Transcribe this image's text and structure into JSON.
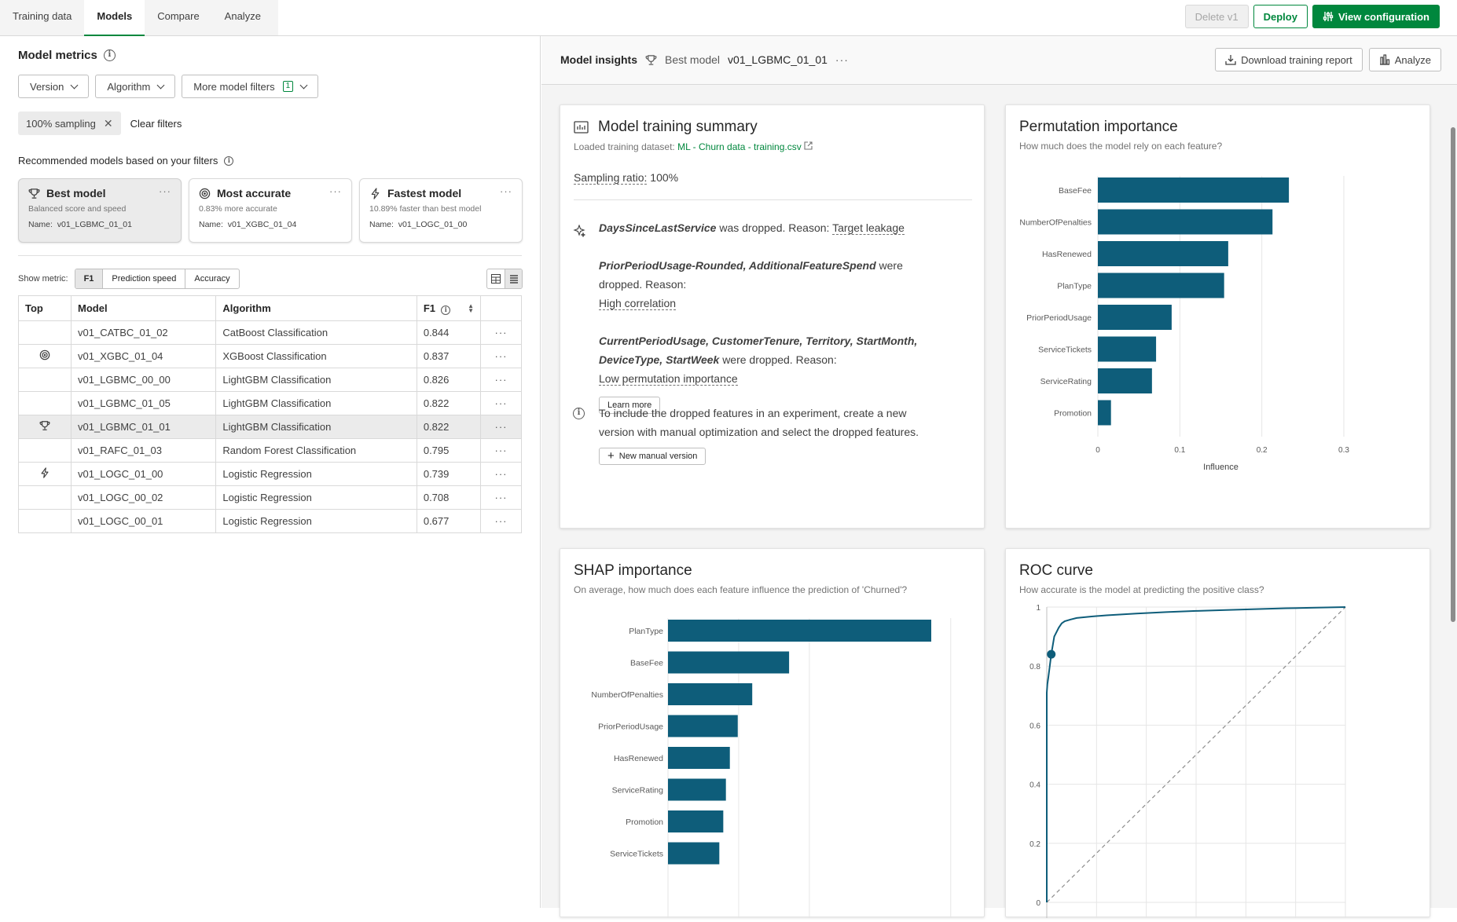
{
  "nav": {
    "tabs": [
      "Training data",
      "Models",
      "Compare",
      "Analyze"
    ],
    "active_tab": "Models",
    "delete_label": "Delete v1",
    "deploy_label": "Deploy",
    "view_config_label": "View configuration"
  },
  "left": {
    "title": "Model metrics",
    "filters": {
      "version": "Version",
      "algorithm": "Algorithm",
      "more": "More model filters",
      "more_count": "1"
    },
    "chip": "100% sampling",
    "clear": "Clear filters",
    "recommended_title": "Recommended models based on your filters",
    "cards": [
      {
        "title": "Best model",
        "sub": "Balanced score and speed",
        "name_label": "Name:",
        "name": "v01_LGBMC_01_01",
        "icon": "trophy-icon"
      },
      {
        "title": "Most accurate",
        "sub": "0.83% more accurate",
        "name_label": "Name:",
        "name": "v01_XGBC_01_04",
        "icon": "target-icon"
      },
      {
        "title": "Fastest model",
        "sub": "10.89% faster than best model",
        "name_label": "Name:",
        "name": "v01_LOGC_01_00",
        "icon": "lightning-icon"
      }
    ],
    "show_metric_label": "Show metric:",
    "metrics": [
      "F1",
      "Prediction speed",
      "Accuracy"
    ],
    "active_metric": "F1",
    "table": {
      "headers": [
        "Top",
        "Model",
        "Algorithm",
        "F1"
      ],
      "rows": [
        {
          "top": "",
          "model": "v01_CATBC_01_02",
          "algorithm": "CatBoost Classification",
          "f1": "0.844"
        },
        {
          "top": "target-icon",
          "model": "v01_XGBC_01_04",
          "algorithm": "XGBoost Classification",
          "f1": "0.837"
        },
        {
          "top": "",
          "model": "v01_LGBMC_00_00",
          "algorithm": "LightGBM Classification",
          "f1": "0.826"
        },
        {
          "top": "",
          "model": "v01_LGBMC_01_05",
          "algorithm": "LightGBM Classification",
          "f1": "0.822"
        },
        {
          "top": "trophy-icon",
          "model": "v01_LGBMC_01_01",
          "algorithm": "LightGBM Classification",
          "f1": "0.822",
          "selected": true
        },
        {
          "top": "",
          "model": "v01_RAFC_01_03",
          "algorithm": "Random Forest Classification",
          "f1": "0.795"
        },
        {
          "top": "lightning-icon",
          "model": "v01_LOGC_01_00",
          "algorithm": "Logistic Regression",
          "f1": "0.739"
        },
        {
          "top": "",
          "model": "v01_LOGC_00_02",
          "algorithm": "Logistic Regression",
          "f1": "0.708"
        },
        {
          "top": "",
          "model": "v01_LOGC_00_01",
          "algorithm": "Logistic Regression",
          "f1": "0.677"
        }
      ]
    }
  },
  "insights": {
    "title": "Model insights",
    "best_label": "Best model",
    "version": "v01_LGBMC_01_01",
    "download_label": "Download training report",
    "analyze_label": "Analyze"
  },
  "summary": {
    "title": "Model training summary",
    "dataset_label": "Loaded training dataset:",
    "dataset_name": "ML - Churn data - training.csv",
    "sampling_label": "Sampling ratio:",
    "sampling_value": "100%",
    "drop1_feature": "DaysSinceLastService",
    "drop1_text": "was dropped. Reason:",
    "drop1_reason": "Target leakage",
    "drop2_features": "PriorPeriodUsage-Rounded, AdditionalFeatureSpend",
    "drop2_text1": "were",
    "drop2_text2": "dropped. Reason:",
    "drop2_reason": "High correlation",
    "drop3_features_line1": "CurrentPeriodUsage, CustomerTenure, Territory, StartMonth,",
    "drop3_features_line2": "DeviceType, StartWeek",
    "drop3_text": "were dropped. Reason:",
    "drop3_reason": "Low permutation importance",
    "learn_more": "Learn more",
    "info_line1": "To include the dropped features in an experiment, create a new",
    "info_line2": "version with manual optimization and select the dropped features.",
    "new_version": "New manual version"
  },
  "perm": {
    "title": "Permutation importance",
    "subtitle": "How much does the model rely on each feature?"
  },
  "shap": {
    "title": "SHAP importance",
    "subtitle": "On average, how much does each feature influence the prediction of 'Churned'?"
  },
  "roc": {
    "title": "ROC curve",
    "subtitle": "How accurate is the model at predicting the positive class?"
  },
  "chart_data": [
    {
      "type": "bar",
      "orientation": "horizontal",
      "categories": [
        "BaseFee",
        "NumberOfPenalties",
        "HasRenewed",
        "PlanType",
        "PriorPeriodUsage",
        "ServiceTickets",
        "ServiceRating",
        "Promotion"
      ],
      "values": [
        0.233,
        0.213,
        0.159,
        0.154,
        0.09,
        0.071,
        0.066,
        0.016
      ],
      "xlabel": "Influence",
      "xlim": [
        0,
        0.3
      ],
      "xticks": [
        "0",
        "0.1",
        "0.2",
        "0.3"
      ],
      "color": "#0e5d7a",
      "grid": true
    },
    {
      "type": "bar",
      "orientation": "horizontal",
      "categories": [
        "PlanType",
        "BaseFee",
        "NumberOfPenalties",
        "PriorPeriodUsage",
        "HasRenewed",
        "ServiceRating",
        "Promotion",
        "ServiceTickets"
      ],
      "values": [
        1.0,
        0.46,
        0.32,
        0.265,
        0.235,
        0.22,
        0.21,
        0.195
      ],
      "color": "#0e5d7a",
      "grid": true
    },
    {
      "type": "line",
      "x": [
        0,
        0.0,
        0.002,
        0.005,
        0.01,
        0.015,
        0.02,
        0.025,
        0.03,
        0.035,
        0.04,
        0.05,
        0.06,
        0.08,
        0.1,
        0.15,
        0.2,
        0.3,
        0.4,
        0.5,
        0.6,
        0.7,
        0.8,
        0.9,
        1.0
      ],
      "y": [
        0,
        0.71,
        0.74,
        0.76,
        0.8,
        0.84,
        0.87,
        0.9,
        0.91,
        0.92,
        0.93,
        0.945,
        0.952,
        0.958,
        0.963,
        0.968,
        0.972,
        0.978,
        0.983,
        0.987,
        0.99,
        0.993,
        0.996,
        0.998,
        1.0
      ],
      "marker": {
        "x": 0.015,
        "y": 0.84
      },
      "yticks": [
        "0",
        "0.2",
        "0.4",
        "0.6",
        "0.8",
        "1"
      ],
      "xlim": [
        0,
        1
      ],
      "ylim": [
        0,
        1
      ],
      "diagonal": true,
      "color": "#0e5d7a",
      "grid": true
    }
  ]
}
